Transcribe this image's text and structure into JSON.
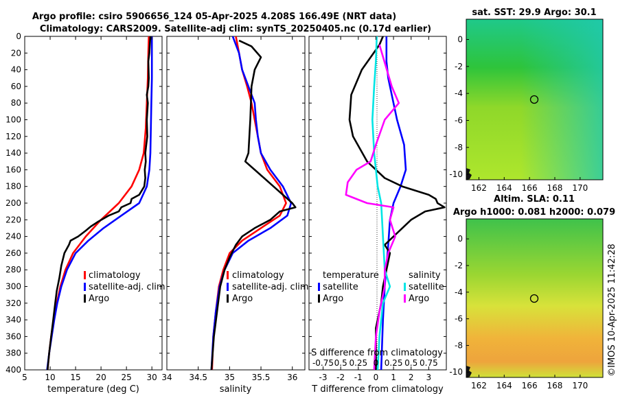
{
  "header": {
    "title_line1": "Argo profile: csiro 5906656_124 05-Apr-2025 4.208S 166.49E (NRT data)",
    "title_line2": "Climatology: CARS2009. Satellite-adj clim: synTS_20250405.nc (0.17d earlier)"
  },
  "colors": {
    "climatology": "#ff0000",
    "satellite": "#0000ff",
    "argo": "#000000",
    "sat_s": "#00e5e5",
    "argo_s": "#ff00ff"
  },
  "depth_ticks": [
    "0",
    "20",
    "40",
    "60",
    "80",
    "100",
    "120",
    "140",
    "160",
    "180",
    "200",
    "220",
    "240",
    "260",
    "280",
    "300",
    "320",
    "340",
    "360",
    "380",
    "400"
  ],
  "chart_data": [
    {
      "type": "line",
      "id": "temperature",
      "xlabel": "temperature (deg C)",
      "ylabel": "",
      "xlim": [
        5,
        32
      ],
      "ylim": [
        400,
        0
      ],
      "xticks": [
        5,
        10,
        15,
        20,
        25,
        30
      ],
      "xtick_labels": [
        "5",
        "10",
        "15",
        "20",
        "25",
        "30"
      ],
      "legend": [
        "climatology",
        "satellite-adj. clim",
        "Argo"
      ],
      "series": [
        {
          "name": "climatology",
          "color": "#ff0000",
          "points": [
            [
              29.4,
              0
            ],
            [
              29.3,
              20
            ],
            [
              29.2,
              50
            ],
            [
              29.0,
              80
            ],
            [
              28.8,
              110
            ],
            [
              28.4,
              140
            ],
            [
              27.5,
              160
            ],
            [
              26.0,
              180
            ],
            [
              23.5,
              200
            ],
            [
              20.0,
              220
            ],
            [
              17.0,
              240
            ],
            [
              14.5,
              260
            ],
            [
              13.0,
              280
            ],
            [
              12.0,
              300
            ],
            [
              11.3,
              320
            ],
            [
              10.7,
              340
            ],
            [
              10.2,
              360
            ],
            [
              9.8,
              380
            ],
            [
              9.5,
              400
            ]
          ]
        },
        {
          "name": "satellite-adj. clim",
          "color": "#0000ff",
          "points": [
            [
              30.0,
              0
            ],
            [
              30.0,
              20
            ],
            [
              30.0,
              50
            ],
            [
              29.9,
              80
            ],
            [
              29.8,
              110
            ],
            [
              29.7,
              140
            ],
            [
              29.5,
              160
            ],
            [
              29.0,
              180
            ],
            [
              27.5,
              200
            ],
            [
              24.0,
              215
            ],
            [
              20.5,
              230
            ],
            [
              17.5,
              245
            ],
            [
              15.0,
              260
            ],
            [
              13.3,
              280
            ],
            [
              12.2,
              300
            ],
            [
              11.4,
              320
            ],
            [
              10.8,
              340
            ],
            [
              10.3,
              360
            ],
            [
              9.8,
              380
            ],
            [
              9.4,
              400
            ]
          ]
        },
        {
          "name": "Argo",
          "color": "#000000",
          "points": [
            [
              29.7,
              0
            ],
            [
              29.6,
              10
            ],
            [
              29.5,
              20
            ],
            [
              29.3,
              30
            ],
            [
              29.4,
              50
            ],
            [
              29.3,
              60
            ],
            [
              29.0,
              70
            ],
            [
              29.2,
              80
            ],
            [
              29.0,
              100
            ],
            [
              29.1,
              120
            ],
            [
              28.9,
              130
            ],
            [
              28.7,
              140
            ],
            [
              28.8,
              150
            ],
            [
              28.6,
              160
            ],
            [
              28.7,
              170
            ],
            [
              28.5,
              180
            ],
            [
              28.0,
              185
            ],
            [
              27.5,
              190
            ],
            [
              26.0,
              195
            ],
            [
              25.8,
              200
            ],
            [
              24.0,
              205
            ],
            [
              23.5,
              210
            ],
            [
              21.5,
              215
            ],
            [
              19.5,
              222
            ],
            [
              18.0,
              228
            ],
            [
              17.0,
              233
            ],
            [
              15.5,
              240
            ],
            [
              14.0,
              245
            ],
            [
              13.7,
              250
            ],
            [
              12.8,
              260
            ],
            [
              12.2,
              275
            ],
            [
              11.8,
              290
            ],
            [
              11.3,
              305
            ],
            [
              11.0,
              320
            ],
            [
              10.6,
              340
            ],
            [
              10.2,
              360
            ],
            [
              9.8,
              380
            ],
            [
              9.5,
              400
            ]
          ]
        }
      ]
    },
    {
      "type": "line",
      "id": "salinity",
      "xlabel": "salinity",
      "ylabel": "",
      "xlim": [
        34.0,
        36.2
      ],
      "ylim": [
        400,
        0
      ],
      "xticks": [
        34.0,
        34.5,
        35.0,
        35.5,
        36.0
      ],
      "xtick_labels": [
        "34",
        "34.5",
        "35",
        "35.5",
        "36"
      ],
      "legend": [
        "climatology",
        "satellite-adj. clim",
        "Argo"
      ],
      "series": [
        {
          "name": "climatology",
          "color": "#ff0000",
          "points": [
            [
              35.1,
              0
            ],
            [
              35.15,
              20
            ],
            [
              35.2,
              40
            ],
            [
              35.28,
              60
            ],
            [
              35.35,
              80
            ],
            [
              35.4,
              100
            ],
            [
              35.45,
              120
            ],
            [
              35.5,
              140
            ],
            [
              35.6,
              160
            ],
            [
              35.8,
              180
            ],
            [
              35.9,
              200
            ],
            [
              35.8,
              215
            ],
            [
              35.5,
              230
            ],
            [
              35.2,
              245
            ],
            [
              35.0,
              260
            ],
            [
              34.9,
              280
            ],
            [
              34.83,
              300
            ],
            [
              34.78,
              330
            ],
            [
              34.74,
              360
            ],
            [
              34.72,
              400
            ]
          ]
        },
        {
          "name": "satellite-adj. clim",
          "color": "#0000ff",
          "points": [
            [
              35.05,
              0
            ],
            [
              35.15,
              20
            ],
            [
              35.2,
              40
            ],
            [
              35.3,
              60
            ],
            [
              35.4,
              80
            ],
            [
              35.42,
              100
            ],
            [
              35.45,
              120
            ],
            [
              35.5,
              140
            ],
            [
              35.65,
              160
            ],
            [
              35.85,
              180
            ],
            [
              35.98,
              200
            ],
            [
              35.92,
              215
            ],
            [
              35.65,
              230
            ],
            [
              35.3,
              245
            ],
            [
              35.05,
              260
            ],
            [
              34.92,
              280
            ],
            [
              34.84,
              300
            ],
            [
              34.78,
              330
            ],
            [
              34.74,
              360
            ],
            [
              34.71,
              400
            ]
          ]
        },
        {
          "name": "Argo",
          "color": "#000000",
          "points": [
            [
              35.15,
              5
            ],
            [
              35.35,
              12
            ],
            [
              35.5,
              25
            ],
            [
              35.4,
              40
            ],
            [
              35.35,
              60
            ],
            [
              35.33,
              100
            ],
            [
              35.3,
              140
            ],
            [
              35.25,
              150
            ],
            [
              35.4,
              160
            ],
            [
              35.55,
              170
            ],
            [
              35.7,
              180
            ],
            [
              35.85,
              190
            ],
            [
              36.0,
              200
            ],
            [
              36.05,
              205
            ],
            [
              35.8,
              210
            ],
            [
              35.65,
              220
            ],
            [
              35.4,
              230
            ],
            [
              35.2,
              240
            ],
            [
              35.1,
              250
            ],
            [
              35.0,
              265
            ],
            [
              34.92,
              280
            ],
            [
              34.85,
              300
            ],
            [
              34.8,
              330
            ],
            [
              34.75,
              360
            ],
            [
              34.71,
              400
            ]
          ]
        }
      ]
    },
    {
      "type": "line",
      "id": "difference",
      "xlabel": "T difference from climatology",
      "top_label": "S difference from climatology",
      "ylabel": "",
      "xlim": [
        -3.8,
        4.0
      ],
      "ylim": [
        400,
        0
      ],
      "xticks": [
        -3,
        -2,
        -1,
        0,
        1,
        2,
        3
      ],
      "xtick_labels": [
        "-3",
        "-2",
        "-1",
        "0",
        "1",
        "2",
        "3"
      ],
      "s_scale_labels": [
        "-0.75",
        "0.5",
        "0.25",
        "0",
        "0.25",
        "0.5",
        "0.75"
      ],
      "legend_temperature_heading": "temperature",
      "legend_salinity_heading": "salinity",
      "legend_temperature": [
        "satellite",
        "Argo"
      ],
      "legend_salinity": [
        "satellite",
        "Argo"
      ],
      "series": [
        {
          "name": "T satellite",
          "color": "#0000ff",
          "points": [
            [
              0.6,
              0
            ],
            [
              0.6,
              30
            ],
            [
              0.7,
              50
            ],
            [
              0.9,
              70
            ],
            [
              1.2,
              100
            ],
            [
              1.6,
              130
            ],
            [
              1.7,
              160
            ],
            [
              1.4,
              180
            ],
            [
              1.0,
              200
            ],
            [
              0.8,
              220
            ],
            [
              0.7,
              250
            ],
            [
              0.5,
              300
            ],
            [
              0.4,
              340
            ],
            [
              0.3,
              400
            ]
          ]
        },
        {
          "name": "T Argo",
          "color": "#000000",
          "points": [
            [
              0.4,
              0
            ],
            [
              0.2,
              10
            ],
            [
              -0.8,
              40
            ],
            [
              -1.4,
              70
            ],
            [
              -1.5,
              100
            ],
            [
              -1.3,
              120
            ],
            [
              -0.5,
              150
            ],
            [
              0.5,
              170
            ],
            [
              1.5,
              180
            ],
            [
              3.0,
              190
            ],
            [
              3.4,
              195
            ],
            [
              3.5,
              200
            ],
            [
              3.9,
              205
            ],
            [
              2.8,
              210
            ],
            [
              2.0,
              220
            ],
            [
              1.0,
              240
            ],
            [
              0.5,
              250
            ],
            [
              0.8,
              260
            ],
            [
              0.6,
              280
            ],
            [
              0.4,
              300
            ],
            [
              0.3,
              320
            ],
            [
              0.0,
              350
            ],
            [
              0.0,
              400
            ]
          ]
        },
        {
          "name": "S satellite",
          "color": "#00e5e5",
          "points": [
            [
              0.05,
              0
            ],
            [
              0.0,
              30
            ],
            [
              -0.1,
              60
            ],
            [
              -0.2,
              100
            ],
            [
              -0.1,
              140
            ],
            [
              0.1,
              180
            ],
            [
              0.3,
              200
            ],
            [
              0.4,
              240
            ],
            [
              0.5,
              280
            ],
            [
              0.8,
              300
            ],
            [
              0.4,
              320
            ],
            [
              0.2,
              360
            ],
            [
              0.1,
              400
            ]
          ]
        },
        {
          "name": "S Argo",
          "color": "#ff00ff",
          "points": [
            [
              0.2,
              10
            ],
            [
              0.9,
              60
            ],
            [
              1.3,
              80
            ],
            [
              0.5,
              100
            ],
            [
              0.0,
              130
            ],
            [
              -0.3,
              150
            ],
            [
              -1.1,
              160
            ],
            [
              -1.6,
              175
            ],
            [
              -1.7,
              190
            ],
            [
              -0.5,
              200
            ],
            [
              1.0,
              205
            ],
            [
              0.8,
              220
            ],
            [
              1.1,
              240
            ],
            [
              0.7,
              260
            ],
            [
              0.5,
              280
            ],
            [
              0.5,
              300
            ],
            [
              0.2,
              330
            ],
            [
              0.0,
              360
            ],
            [
              -0.1,
              400
            ]
          ]
        }
      ]
    }
  ],
  "maps": {
    "sst": {
      "title": "sat. SST: 29.9 Argo: 30.1",
      "yticks": [
        "0",
        "-2",
        "-4",
        "-6",
        "-8",
        "-10"
      ],
      "xticks": [
        "162",
        "164",
        "166",
        "168",
        "170"
      ]
    },
    "sla": {
      "title_line1": "Altim. SLA: 0.11",
      "title_line2": "Argo h1000: 0.081 h2000: 0.079",
      "yticks": [
        "0",
        "-2",
        "-4",
        "-6",
        "-8",
        "-10"
      ],
      "xticks": [
        "162",
        "164",
        "166",
        "168",
        "170"
      ]
    }
  },
  "footer": {
    "timestamp": "©IMOS 10-Apr-2025 11:42:28"
  }
}
